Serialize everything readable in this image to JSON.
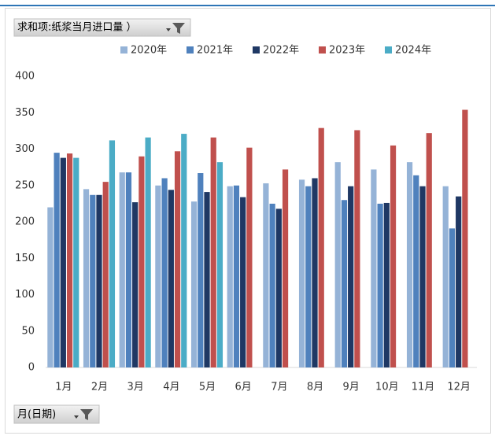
{
  "value_field_button": "求和项:纸浆当月进口量 ）",
  "axis_field_button": "月(日期)",
  "chart_data": {
    "type": "bar",
    "categories": [
      "1月",
      "2月",
      "3月",
      "4月",
      "5月",
      "6月",
      "7月",
      "8月",
      "9月",
      "10月",
      "11月",
      "12月"
    ],
    "series": [
      {
        "name": "2020年",
        "color": "#95b3d7",
        "values": [
          220,
          245,
          268,
          250,
          228,
          249,
          253,
          258,
          282,
          272,
          282,
          249
        ]
      },
      {
        "name": "2021年",
        "color": "#4f81bd",
        "values": [
          295,
          237,
          268,
          260,
          267,
          250,
          225,
          249,
          230,
          225,
          264,
          191
        ]
      },
      {
        "name": "2022年",
        "color": "#1f3864",
        "values": [
          288,
          237,
          227,
          244,
          241,
          234,
          218,
          260,
          249,
          226,
          249,
          235
        ]
      },
      {
        "name": "2023年",
        "color": "#c0504d",
        "values": [
          294,
          255,
          290,
          297,
          316,
          302,
          272,
          329,
          326,
          305,
          322,
          354
        ]
      },
      {
        "name": "2024年",
        "color": "#4bacc6",
        "values": [
          288,
          312,
          316,
          321,
          282,
          null,
          null,
          null,
          null,
          null,
          null,
          null
        ]
      }
    ],
    "ylim": [
      0,
      400
    ],
    "yticks": [
      0,
      50,
      100,
      150,
      200,
      250,
      300,
      350,
      400
    ],
    "legend": "top"
  }
}
